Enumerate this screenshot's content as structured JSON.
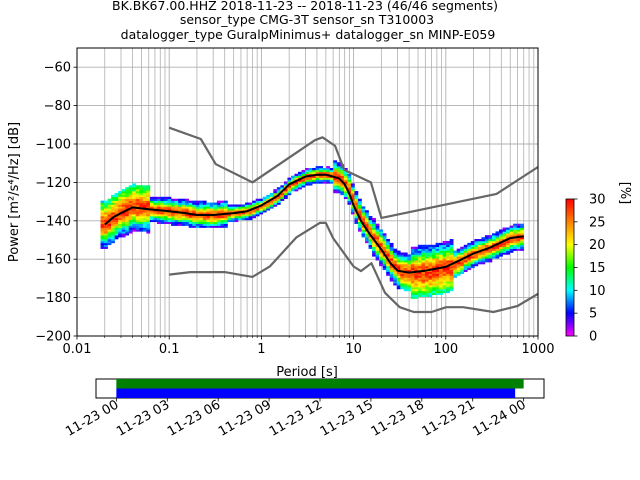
{
  "chart_data": [
    {
      "type": "heatmap",
      "title_lines": [
        "BK.BK67.00.HHZ   2018-11-23 -- 2018-11-23  (46/46 segments)",
        "sensor_type CMG-3T sensor_sn T310003",
        "datalogger_type GuralpMinimus+ datalogger_sn MINP-E059"
      ],
      "xlabel": "Period [s]",
      "ylabel": "Power [m²/s⁴/Hz] [dB]",
      "x_scale": "log",
      "xlim": [
        0.01,
        1000
      ],
      "ylim": [
        -200,
        -50
      ],
      "x_ticks": [
        {
          "value": 0.01,
          "label": "0.01"
        },
        {
          "value": 0.1,
          "label": "0.1"
        },
        {
          "value": 1,
          "label": "1"
        },
        {
          "value": 10,
          "label": "10"
        },
        {
          "value": 100,
          "label": "100"
        },
        {
          "value": 1000,
          "label": "1000"
        }
      ],
      "y_ticks": [
        {
          "value": -60,
          "label": "−60"
        },
        {
          "value": -80,
          "label": "−80"
        },
        {
          "value": -100,
          "label": "−100"
        },
        {
          "value": -120,
          "label": "−120"
        },
        {
          "value": -140,
          "label": "−140"
        },
        {
          "value": -160,
          "label": "−160"
        },
        {
          "value": -180,
          "label": "−180"
        },
        {
          "value": -200,
          "label": "−200"
        }
      ],
      "grid": true,
      "colorbar": {
        "label": "[%]",
        "range": [
          0,
          30
        ],
        "ticks": [
          {
            "value": 0,
            "label": "0"
          },
          {
            "value": 5,
            "label": "5"
          },
          {
            "value": 10,
            "label": "10"
          },
          {
            "value": 15,
            "label": "15"
          },
          {
            "value": 20,
            "label": "20"
          },
          {
            "value": 25,
            "label": "25"
          },
          {
            "value": 30,
            "label": "30"
          }
        ],
        "colormap": [
          "#ffffff",
          "#ff00ff",
          "#0000ff",
          "#00ffff",
          "#00ff00",
          "#ffff00",
          "#ff8000",
          "#ff0000"
        ]
      },
      "noise_model_high": {
        "period": [
          0.1,
          0.22,
          0.32,
          0.8,
          3.8,
          4.6,
          6.3,
          7.9,
          15.4,
          20,
          354.8,
          1000
        ],
        "power": [
          -91.5,
          -97.4,
          -110.5,
          -120,
          -98,
          -96.5,
          -101,
          -113.5,
          -120,
          -138.5,
          -126,
          -112
        ]
      },
      "noise_model_low": {
        "period": [
          0.1,
          0.17,
          0.4,
          0.8,
          1.24,
          2.4,
          4.3,
          5,
          6,
          10,
          12,
          15.6,
          21.9,
          31.6,
          45,
          70,
          101,
          154,
          328,
          600,
          1000
        ],
        "power": [
          -168,
          -166.7,
          -166.7,
          -169.2,
          -163.7,
          -148.6,
          -141.1,
          -141.1,
          -149,
          -163.8,
          -166.2,
          -162.1,
          -177.5,
          -185,
          -187.5,
          -187.5,
          -185,
          -185,
          -187.5,
          -184.4,
          -178
        ]
      },
      "mode_curve": {
        "period": [
          0.02,
          0.025,
          0.03,
          0.04,
          0.06,
          0.1,
          0.15,
          0.2,
          0.3,
          0.5,
          0.7,
          1,
          1.5,
          2,
          3,
          4,
          5,
          6,
          7,
          8,
          9,
          10,
          12,
          15,
          20,
          25,
          30,
          40,
          60,
          100,
          150,
          200,
          300,
          500,
          700
        ],
        "power": [
          -142,
          -138,
          -136,
          -133,
          -134,
          -135,
          -136,
          -137,
          -137,
          -136,
          -135,
          -132,
          -127,
          -121,
          -117,
          -116,
          -116,
          -117,
          -118,
          -121,
          -126,
          -132,
          -140,
          -147,
          -155,
          -162,
          -166,
          -167,
          -166,
          -164,
          -160,
          -157,
          -154,
          -149,
          -148
        ]
      },
      "density_sample": [
        {
          "period": 0.04,
          "power": -128,
          "pct": 3
        },
        {
          "period": 0.06,
          "power": -133,
          "pct": 20
        },
        {
          "period": 0.1,
          "power": -138,
          "pct": 12
        },
        {
          "period": 0.5,
          "power": -136,
          "pct": 18
        },
        {
          "period": 3,
          "power": -117,
          "pct": 28
        },
        {
          "period": 10,
          "power": -130,
          "pct": 15
        },
        {
          "period": 40,
          "power": -168,
          "pct": 12
        },
        {
          "period": 60,
          "power": -175,
          "pct": 3
        },
        {
          "period": 100,
          "power": -165,
          "pct": 10
        },
        {
          "period": 300,
          "power": -152,
          "pct": 4
        },
        {
          "period": 600,
          "power": -146,
          "pct": 17
        }
      ]
    },
    {
      "type": "bar",
      "description_kind": "timeline",
      "start": "2018-11-23 00:00",
      "end": "2018-11-24 00:00",
      "tick_labels": [
        "11-23 00",
        "11-23 03",
        "11-23 06",
        "11-23 09",
        "11-23 12",
        "11-23 15",
        "11-23 18",
        "11-23 21",
        "11-24 00"
      ],
      "tick_hours": [
        0,
        3,
        6,
        9,
        12,
        15,
        18,
        21,
        24
      ],
      "xlim_hours": [
        -1.2,
        25.2
      ],
      "series": [
        {
          "start_hour": 0,
          "end_hour": 24.0,
          "color": "#008000"
        },
        {
          "start_hour": 0,
          "end_hour": 23.5,
          "color": "#0000ff"
        }
      ]
    }
  ]
}
